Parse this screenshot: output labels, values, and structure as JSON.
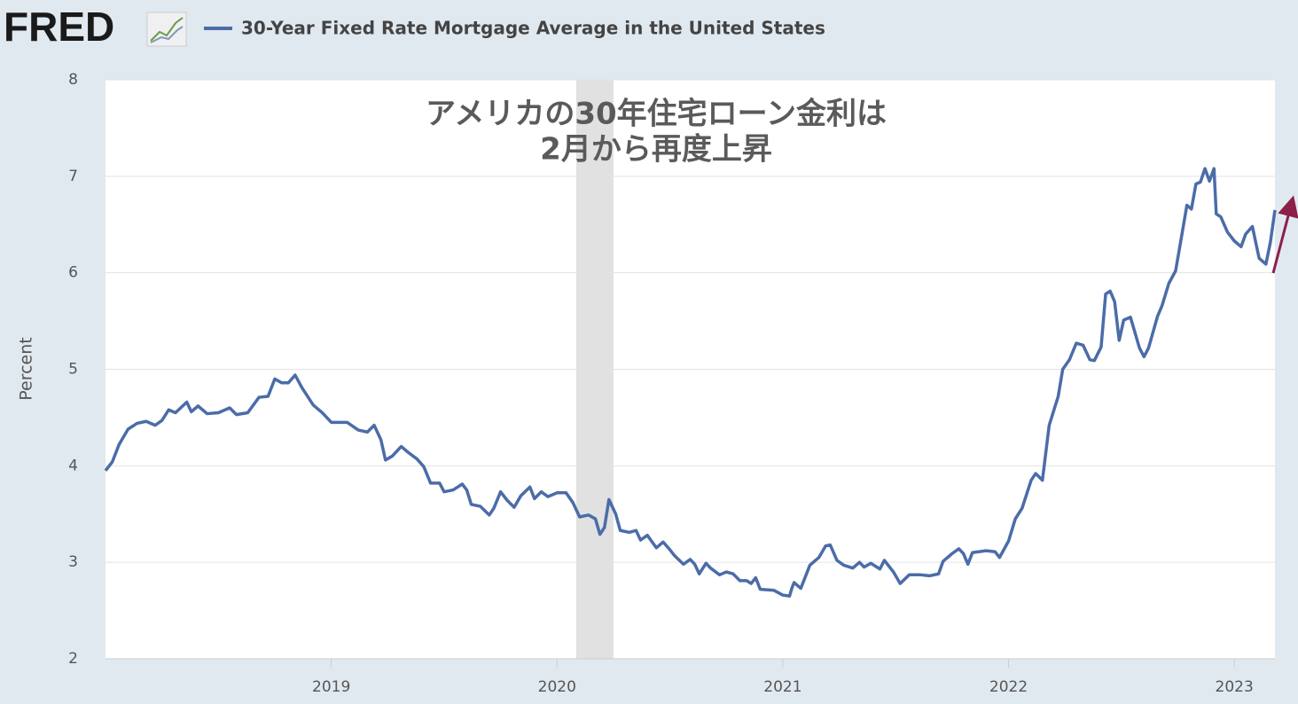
{
  "chart_data": {
    "type": "line",
    "logo": "FRED",
    "annotation": [
      "アメリカの30年住宅ローン金利は",
      "2月から再度上昇"
    ],
    "ylabel": "Percent",
    "xlim": [
      2018.0,
      2023.18
    ],
    "xticks": [
      2019,
      2020,
      2021,
      2022,
      2023
    ],
    "ylim": [
      2,
      8
    ],
    "yticks": [
      2,
      3,
      4,
      5,
      6,
      7,
      8
    ],
    "grid": true,
    "shaded_periods": [
      [
        2020.085,
        2020.25
      ]
    ],
    "shade_color": "#e1e1e1",
    "x": [
      2018.0,
      2018.03,
      2018.06,
      2018.1,
      2018.14,
      2018.18,
      2018.22,
      2018.25,
      2018.28,
      2018.31,
      2018.36,
      2018.38,
      2018.41,
      2018.45,
      2018.5,
      2018.55,
      2018.58,
      2018.63,
      2018.68,
      2018.72,
      2018.75,
      2018.78,
      2018.81,
      2018.84,
      2018.87,
      2018.92,
      2018.96,
      2019.0,
      2019.07,
      2019.12,
      2019.16,
      2019.19,
      2019.22,
      2019.24,
      2019.27,
      2019.31,
      2019.34,
      2019.38,
      2019.41,
      2019.44,
      2019.48,
      2019.5,
      2019.54,
      2019.58,
      2019.6,
      2019.62,
      2019.66,
      2019.7,
      2019.72,
      2019.75,
      2019.78,
      2019.81,
      2019.84,
      2019.88,
      2019.9,
      2019.93,
      2019.96,
      2020.0,
      2020.04,
      2020.07,
      2020.1,
      2020.14,
      2020.17,
      2020.19,
      2020.21,
      2020.23,
      2020.26,
      2020.28,
      2020.32,
      2020.35,
      2020.37,
      2020.4,
      2020.44,
      2020.47,
      2020.5,
      2020.52,
      2020.56,
      2020.59,
      2020.61,
      2020.63,
      2020.66,
      2020.68,
      2020.72,
      2020.75,
      2020.78,
      2020.81,
      2020.84,
      2020.86,
      2020.88,
      2020.9,
      2020.96,
      2021.0,
      2021.03,
      2021.04,
      2021.05,
      2021.08,
      2021.12,
      2021.16,
      2021.19,
      2021.21,
      2021.24,
      2021.27,
      2021.31,
      2021.34,
      2021.36,
      2021.39,
      2021.43,
      2021.45,
      2021.49,
      2021.52,
      2021.56,
      2021.61,
      2021.65,
      2021.69,
      2021.71,
      2021.75,
      2021.78,
      2021.8,
      2021.82,
      2021.84,
      2021.9,
      2021.94,
      2021.96,
      2022.0,
      2022.03,
      2022.06,
      2022.1,
      2022.12,
      2022.15,
      2022.18,
      2022.22,
      2022.24,
      2022.27,
      2022.3,
      2022.33,
      2022.36,
      2022.38,
      2022.41,
      2022.43,
      2022.45,
      2022.47,
      2022.49,
      2022.51,
      2022.54,
      2022.58,
      2022.6,
      2022.62,
      2022.66,
      2022.68,
      2022.71,
      2022.74,
      2022.76,
      2022.79,
      2022.81,
      2022.83,
      2022.85,
      2022.87,
      2022.89,
      2022.91,
      2022.92,
      2022.94,
      2022.97,
      2023.0,
      2023.03,
      2023.05,
      2023.08,
      2023.11,
      2023.14,
      2023.16,
      2023.18
    ],
    "series": [
      {
        "name": "30-Year Fixed Rate Mortgage Average in the United States",
        "color": "#4b6ca8",
        "values": [
          3.95,
          4.04,
          4.22,
          4.38,
          4.44,
          4.46,
          4.42,
          4.47,
          4.58,
          4.55,
          4.66,
          4.56,
          4.62,
          4.54,
          4.55,
          4.6,
          4.53,
          4.55,
          4.71,
          4.72,
          4.9,
          4.86,
          4.86,
          4.94,
          4.81,
          4.63,
          4.55,
          4.45,
          4.45,
          4.37,
          4.35,
          4.42,
          4.27,
          4.06,
          4.1,
          4.2,
          4.14,
          4.07,
          3.99,
          3.82,
          3.82,
          3.73,
          3.75,
          3.81,
          3.75,
          3.6,
          3.58,
          3.49,
          3.56,
          3.73,
          3.64,
          3.57,
          3.69,
          3.78,
          3.66,
          3.73,
          3.68,
          3.72,
          3.72,
          3.62,
          3.47,
          3.49,
          3.45,
          3.29,
          3.36,
          3.65,
          3.5,
          3.33,
          3.31,
          3.33,
          3.23,
          3.28,
          3.15,
          3.21,
          3.13,
          3.07,
          2.98,
          3.03,
          2.98,
          2.88,
          2.99,
          2.94,
          2.87,
          2.9,
          2.88,
          2.81,
          2.81,
          2.78,
          2.84,
          2.72,
          2.71,
          2.66,
          2.65,
          2.73,
          2.79,
          2.73,
          2.97,
          3.05,
          3.17,
          3.18,
          3.02,
          2.97,
          2.94,
          3.0,
          2.95,
          2.99,
          2.93,
          3.02,
          2.9,
          2.78,
          2.87,
          2.87,
          2.86,
          2.88,
          3.01,
          3.09,
          3.14,
          3.09,
          2.98,
          3.1,
          3.12,
          3.11,
          3.05,
          3.22,
          3.45,
          3.56,
          3.85,
          3.92,
          3.85,
          4.42,
          4.72,
          5.0,
          5.1,
          5.27,
          5.25,
          5.1,
          5.09,
          5.23,
          5.78,
          5.81,
          5.7,
          5.3,
          5.51,
          5.54,
          5.22,
          5.13,
          5.22,
          5.55,
          5.66,
          5.89,
          6.02,
          6.29,
          6.7,
          6.66,
          6.92,
          6.94,
          7.08,
          6.95,
          7.08,
          6.61,
          6.58,
          6.42,
          6.33,
          6.27,
          6.4,
          6.48,
          6.15,
          6.09,
          6.32,
          6.65
        ]
      }
    ]
  }
}
